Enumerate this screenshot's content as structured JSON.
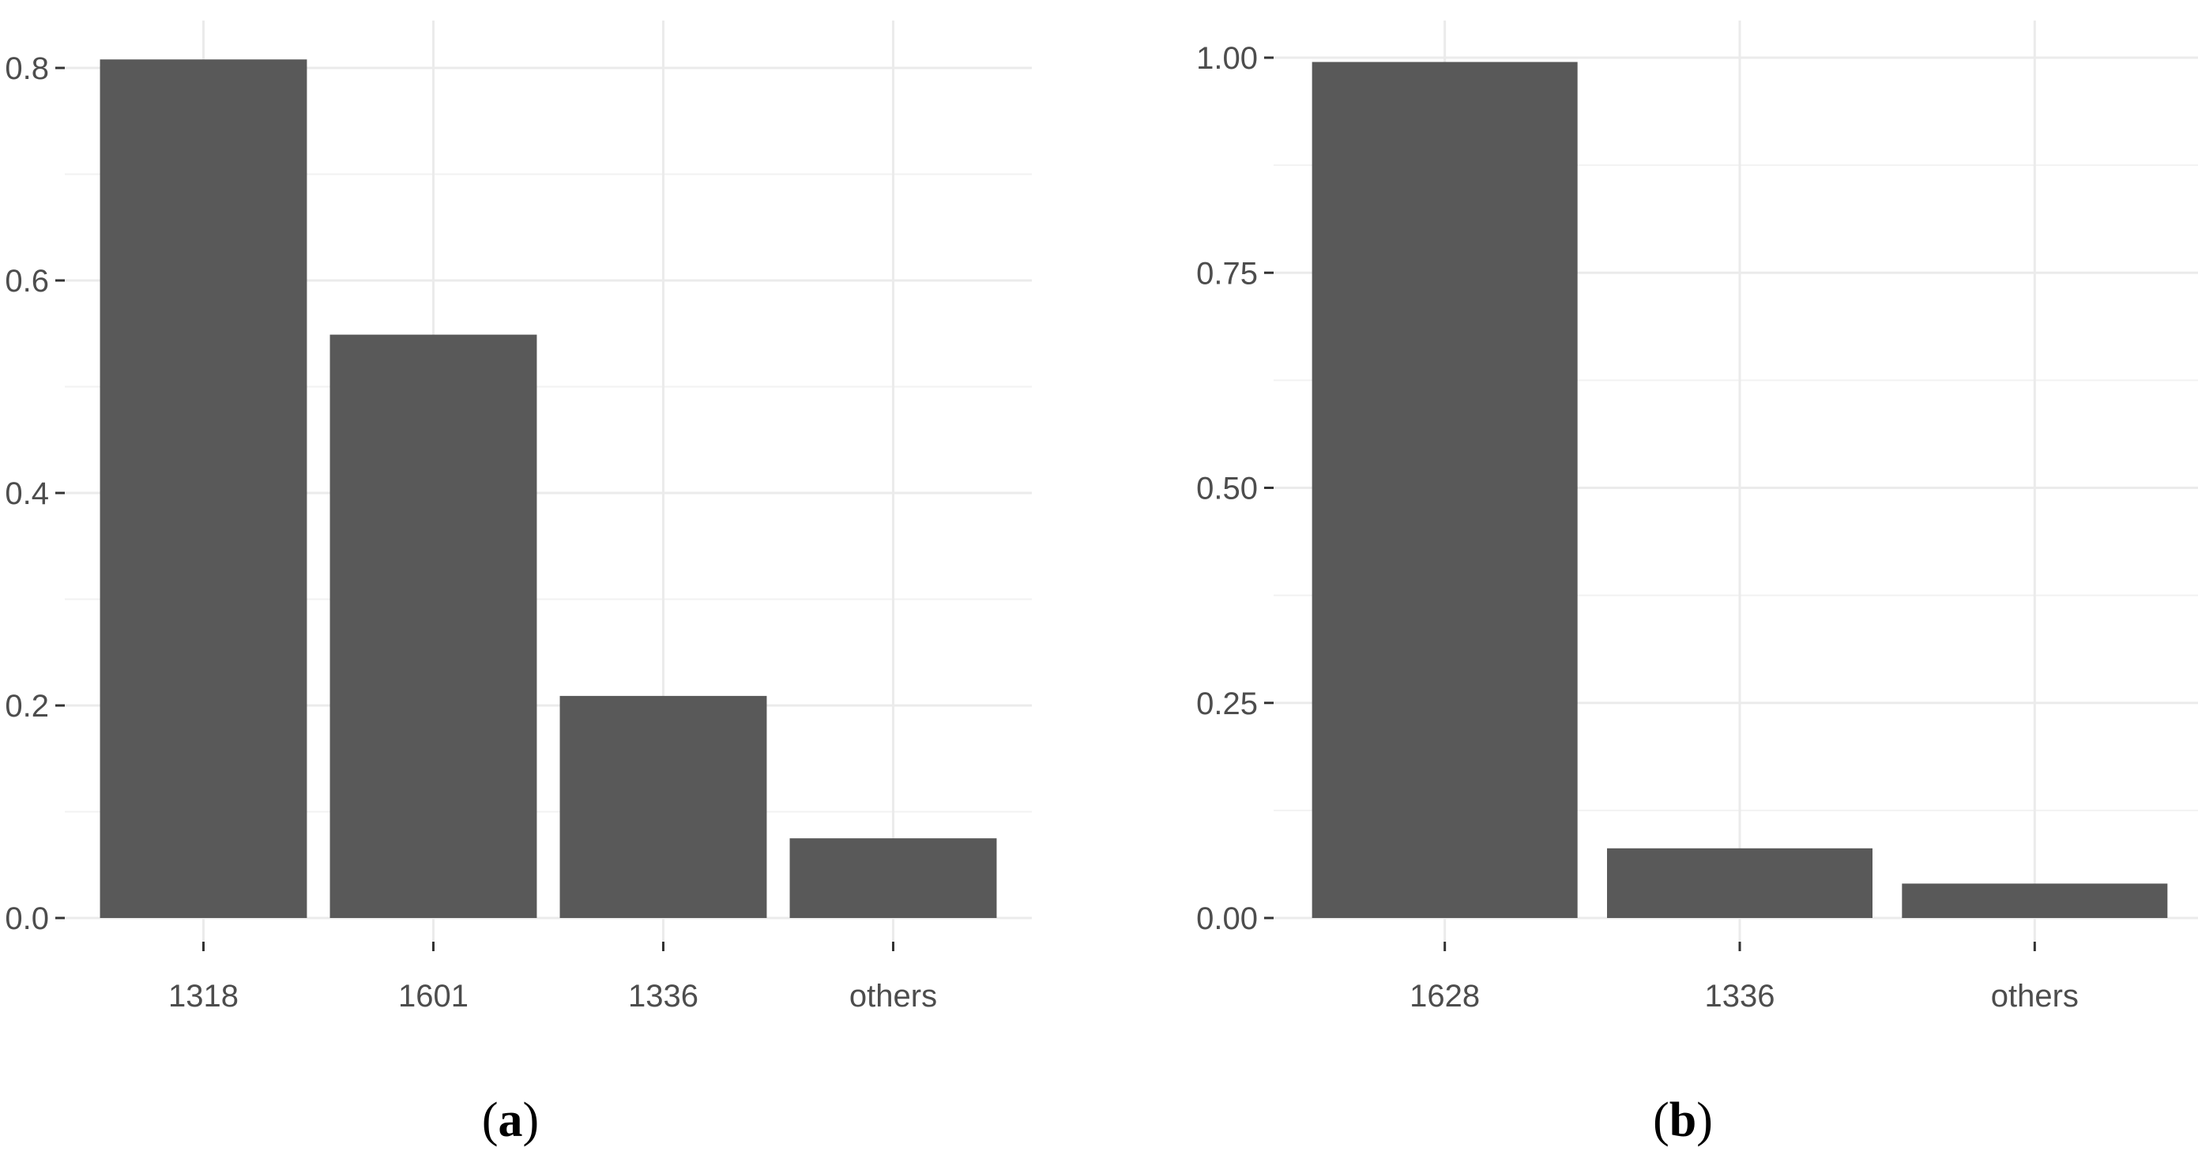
{
  "chart_data": [
    {
      "type": "bar",
      "categories": [
        "1318",
        "1601",
        "1336",
        "others"
      ],
      "values": [
        0.808,
        0.549,
        0.209,
        0.075
      ],
      "ylim": [
        0,
        0.8
      ],
      "yticks": [
        0.0,
        0.2,
        0.4,
        0.6,
        0.8
      ],
      "ytick_labels": [
        "0.0",
        "0.2",
        "0.4",
        "0.6",
        "0.8"
      ],
      "title": "",
      "xlabel": "",
      "ylabel": "",
      "panel_label": {
        "open": "(",
        "letter": "a",
        "close": ")"
      },
      "grid": true,
      "bar_color": "#595959"
    },
    {
      "type": "bar",
      "categories": [
        "1628",
        "1336",
        "others"
      ],
      "values": [
        0.995,
        0.081,
        0.04
      ],
      "ylim": [
        0,
        1.0
      ],
      "yticks": [
        0.0,
        0.25,
        0.5,
        0.75,
        1.0
      ],
      "ytick_labels": [
        "0.00",
        "0.25",
        "0.50",
        "0.75",
        "1.00"
      ],
      "title": "",
      "xlabel": "",
      "ylabel": "",
      "panel_label": {
        "open": "(",
        "letter": "b",
        "close": ")"
      },
      "grid": true,
      "bar_color": "#595959"
    }
  ],
  "colors": {
    "grid_major": "#ebebeb",
    "grid_minor": "#f2f2f2",
    "tick": "#333333",
    "bar": "#595959"
  }
}
